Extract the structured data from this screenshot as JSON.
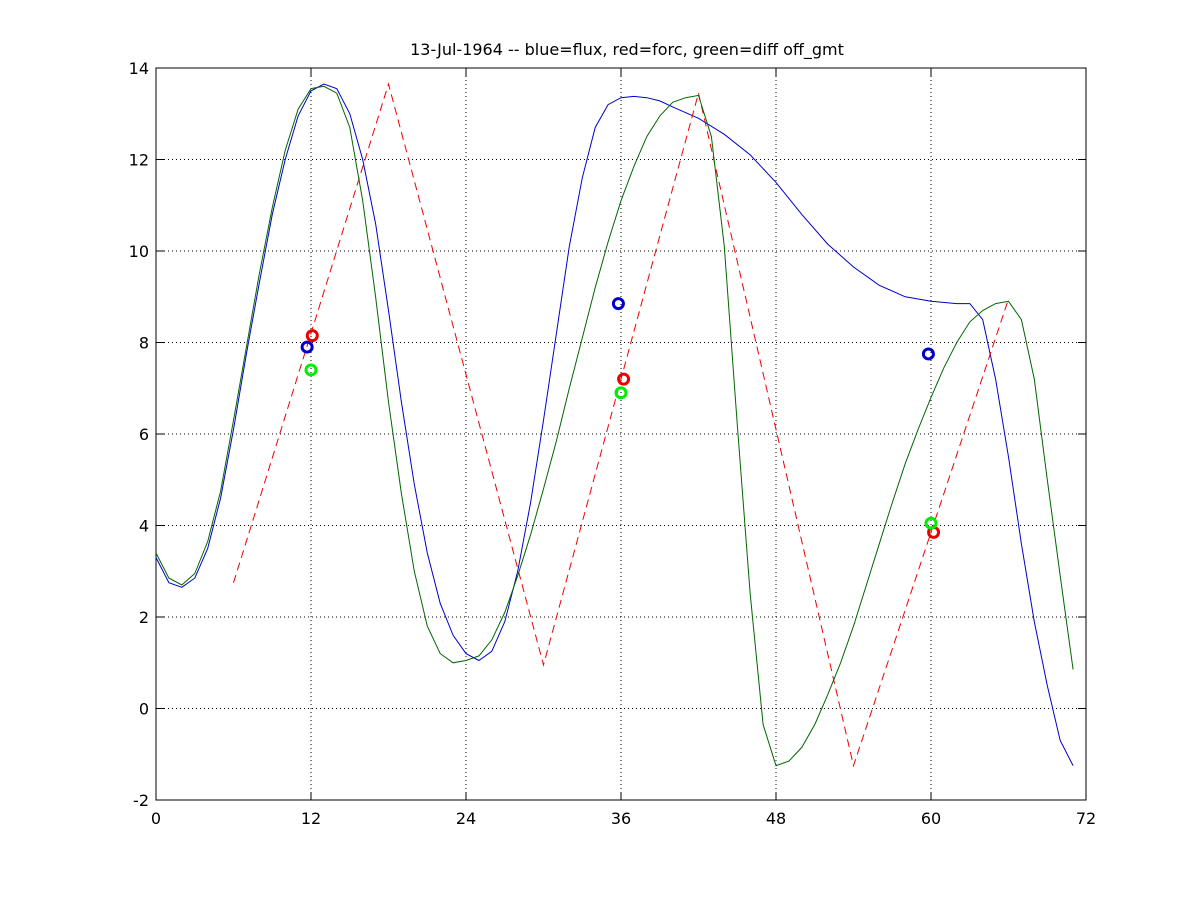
{
  "chart_data": {
    "type": "line",
    "title": "13-Jul-1964 -- blue=flux, red=forc, green=diff off_gmt",
    "xlabel": "",
    "ylabel": "",
    "xlim": [
      0,
      72
    ],
    "ylim": [
      -2,
      14
    ],
    "xticks": [
      "0",
      "12",
      "24",
      "36",
      "48",
      "60",
      "72"
    ],
    "yticks": [
      "-2",
      "0",
      "2",
      "4",
      "6",
      "8",
      "10",
      "12",
      "14"
    ],
    "grid": true,
    "colors": {
      "flux": "#0000cc",
      "forc": "#ee0000",
      "diff": "#006600",
      "marker_diff": "#00ee00"
    },
    "series": [
      {
        "key": "flux",
        "style": "solid",
        "x": [
          0,
          1,
          2,
          3,
          4,
          5,
          6,
          7,
          8,
          9,
          10,
          11,
          12,
          13,
          14,
          15,
          16,
          17,
          18,
          19,
          20,
          21,
          22,
          23,
          24,
          25,
          26,
          27,
          28,
          29,
          30,
          31,
          32,
          33,
          34,
          35,
          36,
          37,
          38,
          39,
          40,
          42,
          44,
          46,
          48,
          50,
          52,
          54,
          56,
          58,
          60,
          62,
          63,
          64,
          65,
          66,
          67,
          68,
          69,
          70,
          71
        ],
        "y": [
          3.3,
          2.75,
          2.65,
          2.85,
          3.5,
          4.6,
          6.1,
          7.75,
          9.3,
          10.8,
          12.0,
          12.95,
          13.5,
          13.65,
          13.55,
          13.0,
          12.0,
          10.6,
          8.7,
          6.7,
          4.9,
          3.4,
          2.3,
          1.6,
          1.2,
          1.05,
          1.25,
          1.9,
          3.0,
          4.5,
          6.3,
          8.2,
          10.1,
          11.6,
          12.7,
          13.2,
          13.35,
          13.38,
          13.35,
          13.28,
          13.15,
          12.9,
          12.55,
          12.1,
          11.5,
          10.8,
          10.15,
          9.65,
          9.25,
          9.0,
          8.9,
          8.85,
          8.85,
          8.5,
          7.2,
          5.5,
          3.6,
          1.9,
          0.5,
          -0.7,
          -1.25
        ]
      },
      {
        "key": "forc",
        "style": "dashed",
        "x": [
          6,
          18,
          30,
          42,
          54,
          66
        ],
        "y": [
          2.75,
          13.65,
          0.95,
          13.45,
          -1.25,
          8.95
        ]
      },
      {
        "key": "diff",
        "style": "solid",
        "x": [
          0,
          1,
          2,
          3,
          4,
          5,
          6,
          7,
          8,
          9,
          10,
          11,
          12,
          13,
          14,
          15,
          16,
          17,
          18,
          19,
          20,
          21,
          22,
          23,
          24,
          25,
          26,
          27,
          28,
          29,
          30,
          31,
          32,
          33,
          34,
          35,
          36,
          37,
          38,
          39,
          40,
          41,
          42,
          43,
          44,
          45,
          46,
          47,
          48,
          49,
          50,
          51,
          52,
          53,
          54,
          55,
          56,
          57,
          58,
          59,
          60,
          61,
          62,
          63,
          64,
          65,
          66,
          67,
          68,
          69,
          70,
          71
        ],
        "y": [
          3.4,
          2.85,
          2.7,
          2.95,
          3.65,
          4.75,
          6.3,
          7.9,
          9.5,
          10.95,
          12.2,
          13.1,
          13.55,
          13.6,
          13.45,
          12.7,
          11.1,
          9.0,
          6.7,
          4.7,
          3.0,
          1.8,
          1.2,
          1.0,
          1.05,
          1.15,
          1.5,
          2.1,
          2.9,
          3.8,
          4.8,
          5.85,
          7.0,
          8.1,
          9.2,
          10.2,
          11.1,
          11.85,
          12.5,
          12.95,
          13.25,
          13.35,
          13.4,
          12.5,
          10.1,
          6.2,
          2.5,
          -0.35,
          -1.25,
          -1.15,
          -0.85,
          -0.35,
          0.3,
          1.0,
          1.8,
          2.7,
          3.6,
          4.5,
          5.35,
          6.1,
          6.8,
          7.45,
          8.0,
          8.45,
          8.7,
          8.85,
          8.9,
          8.5,
          7.2,
          5.0,
          2.9,
          0.85
        ]
      }
    ],
    "markers": [
      {
        "key": "flux",
        "points": [
          [
            11.7,
            7.9
          ],
          [
            35.8,
            8.85
          ],
          [
            59.8,
            7.75
          ]
        ]
      },
      {
        "key": "forc",
        "points": [
          [
            12.1,
            8.15
          ],
          [
            36.2,
            7.2
          ],
          [
            60.2,
            3.85
          ]
        ]
      },
      {
        "key": "diff",
        "points": [
          [
            12.0,
            7.4
          ],
          [
            36.0,
            6.9
          ],
          [
            60.0,
            4.05
          ]
        ]
      }
    ]
  }
}
